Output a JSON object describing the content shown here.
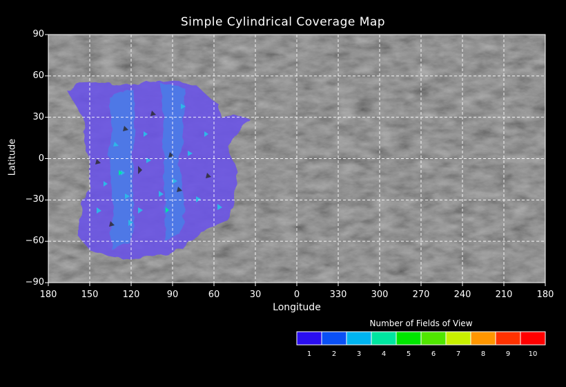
{
  "title": "Simple Cylindrical Coverage Map",
  "x_axis": {
    "label": "Longitude",
    "ticks": [
      "180",
      "150",
      "120",
      "90",
      "60",
      "30",
      "0",
      "330",
      "300",
      "270",
      "240",
      "210",
      "180"
    ]
  },
  "y_axis": {
    "label": "Latitude",
    "ticks": [
      "90",
      "60",
      "30",
      "0",
      "−30",
      "−60",
      "−90"
    ]
  },
  "legend": {
    "title": "Number of Fields of View",
    "labels": [
      "1",
      "2",
      "3",
      "4",
      "5",
      "6",
      "7",
      "8",
      "9",
      "10"
    ],
    "colors": [
      "#2a0ef0",
      "#0a50f5",
      "#00b4f0",
      "#00e6a0",
      "#00e600",
      "#50e600",
      "#c8f000",
      "#ff9600",
      "#ff3200",
      "#ff0000"
    ]
  },
  "coverage": {
    "description_values": "Fields of view count 1-3 over longitude ~180 to ~30, latitude ~-70 to ~60",
    "base_color": "#6a52e8",
    "second_color": "#4a7ee8",
    "third_color": "#2fb6e8",
    "lon_range": [
      180,
      30
    ],
    "lat_range": [
      -70,
      57
    ]
  },
  "colors": {
    "background": "#000000",
    "map_gray": "#6e6e6e",
    "grid": "#ffffff"
  }
}
